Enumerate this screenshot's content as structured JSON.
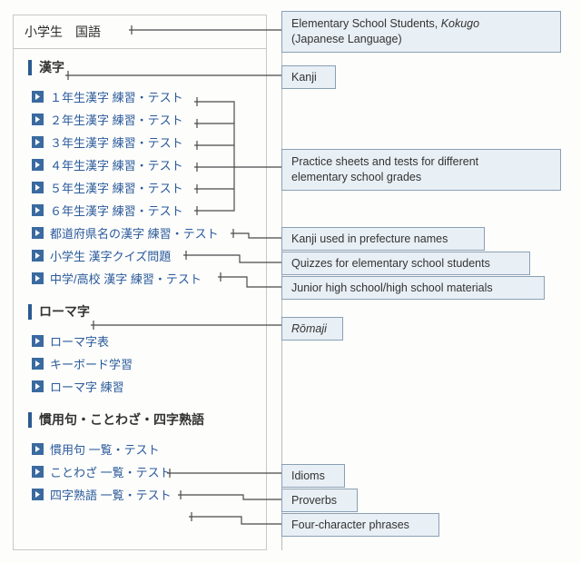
{
  "colors": {
    "panel_border": "#c9c9c7",
    "panel_bg": "#fdfdfc",
    "section_bar": "#2a5a8f",
    "link_color": "#2a5a9a",
    "arrow_bg": "#3a6a9f",
    "anno_bg": "#e8eff5",
    "anno_border": "#8aa0b3",
    "connector": "#4a4a48",
    "vline": "#b9bbb9"
  },
  "header": {
    "title": "小学生　国語"
  },
  "annotations": {
    "header": {
      "line1": "Elementary School Students, ",
      "italic": "Kokugo",
      "line2": "(Japanese Language)"
    },
    "kanji": "Kanji",
    "grades": {
      "line1": "Practice sheets and tests for different",
      "line2": "elementary school grades"
    },
    "prefecture": "Kanji used in prefecture names",
    "quiz": "Quizzes for elementary school students",
    "jrhs": "Junior high school/high school materials",
    "romaji": {
      "italic": "Rōmaji"
    },
    "idioms": "Idioms",
    "proverbs": "Proverbs",
    "fourchar": "Four-character phrases"
  },
  "sections": {
    "kanji": {
      "title": "漢字",
      "items": [
        "１年生漢字 練習・テスト",
        "２年生漢字 練習・テスト",
        "３年生漢字 練習・テスト",
        "４年生漢字 練習・テスト",
        "５年生漢字 練習・テスト",
        "６年生漢字 練習・テスト",
        "都道府県名の漢字 練習・テスト",
        "小学生 漢字クイズ問題",
        "中学/高校 漢字 練習・テスト"
      ]
    },
    "romaji": {
      "title": "ローマ字",
      "items": [
        "ローマ字表",
        "キーボード学習",
        "ローマ字 練習"
      ]
    },
    "idioms": {
      "title": "慣用句・ことわざ・四字熟語",
      "items": [
        "慣用句 一覧・テスト",
        "ことわざ 一覧・テスト",
        "四字熟語 一覧・テスト"
      ]
    }
  }
}
